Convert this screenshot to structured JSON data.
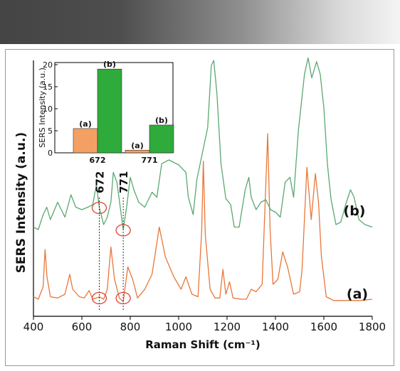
{
  "chart_data": [
    {
      "type": "line",
      "xlabel": "Raman Shift (cm⁻¹)",
      "ylabel": "SERS Intensity (a.u.)",
      "xlim": [
        400,
        1800
      ],
      "xticks": [
        "400",
        "600",
        "800",
        "1000",
        "1200",
        "1400",
        "1600",
        "1800"
      ],
      "y_ticks_shown": false,
      "y_scale": "arbitrary, offset traces",
      "colors": {
        "a": "#e8773a",
        "b": "#5aa870"
      },
      "annotations": [
        {
          "text": "672",
          "x": 672
        },
        {
          "text": "771",
          "x": 771
        }
      ],
      "series": [
        {
          "name": "(a)",
          "label": "(a)",
          "points": [
            [
              400,
              0.06
            ],
            [
              420,
              0.04
            ],
            [
              440,
              0.14
            ],
            [
              448,
              0.44
            ],
            [
              456,
              0.22
            ],
            [
              470,
              0.06
            ],
            [
              500,
              0.05
            ],
            [
              530,
              0.08
            ],
            [
              550,
              0.24
            ],
            [
              562,
              0.12
            ],
            [
              590,
              0.06
            ],
            [
              610,
              0.05
            ],
            [
              630,
              0.11
            ],
            [
              645,
              0.04
            ],
            [
              660,
              0.05
            ],
            [
              672,
              0.06
            ],
            [
              690,
              0.04
            ],
            [
              705,
              0.12
            ],
            [
              720,
              0.46
            ],
            [
              735,
              0.2
            ],
            [
              755,
              0.05
            ],
            [
              771,
              0.02
            ],
            [
              790,
              0.3
            ],
            [
              810,
              0.2
            ],
            [
              830,
              0.05
            ],
            [
              860,
              0.12
            ],
            [
              890,
              0.24
            ],
            [
              920,
              0.62
            ],
            [
              945,
              0.38
            ],
            [
              980,
              0.22
            ],
            [
              1010,
              0.12
            ],
            [
              1030,
              0.22
            ],
            [
              1055,
              0.08
            ],
            [
              1080,
              0.06
            ],
            [
              1095,
              0.58
            ],
            [
              1102,
              1.15
            ],
            [
              1110,
              0.56
            ],
            [
              1130,
              0.12
            ],
            [
              1150,
              0.05
            ],
            [
              1170,
              0.05
            ],
            [
              1183,
              0.28
            ],
            [
              1195,
              0.08
            ],
            [
              1210,
              0.18
            ],
            [
              1225,
              0.05
            ],
            [
              1260,
              0.04
            ],
            [
              1280,
              0.04
            ],
            [
              1300,
              0.12
            ],
            [
              1320,
              0.1
            ],
            [
              1345,
              0.16
            ],
            [
              1368,
              1.37
            ],
            [
              1378,
              0.6
            ],
            [
              1390,
              0.16
            ],
            [
              1410,
              0.2
            ],
            [
              1430,
              0.42
            ],
            [
              1450,
              0.3
            ],
            [
              1475,
              0.08
            ],
            [
              1500,
              0.1
            ],
            [
              1510,
              0.28
            ],
            [
              1530,
              1.1
            ],
            [
              1548,
              0.68
            ],
            [
              1565,
              1.05
            ],
            [
              1578,
              0.82
            ],
            [
              1590,
              0.38
            ],
            [
              1610,
              0.06
            ],
            [
              1640,
              0.03
            ],
            [
              1700,
              0.03
            ],
            [
              1750,
              0.03
            ],
            [
              1800,
              0.04
            ]
          ]
        },
        {
          "name": "(b)",
          "label": "(b)",
          "points": [
            [
              400,
              0.42
            ],
            [
              420,
              0.4
            ],
            [
              440,
              0.52
            ],
            [
              455,
              0.58
            ],
            [
              470,
              0.48
            ],
            [
              500,
              0.62
            ],
            [
              530,
              0.5
            ],
            [
              555,
              0.68
            ],
            [
              575,
              0.58
            ],
            [
              600,
              0.56
            ],
            [
              625,
              0.58
            ],
            [
              645,
              0.6
            ],
            [
              660,
              0.76
            ],
            [
              672,
              0.58
            ],
            [
              690,
              0.44
            ],
            [
              705,
              0.5
            ],
            [
              720,
              0.62
            ],
            [
              730,
              0.86
            ],
            [
              745,
              0.78
            ],
            [
              760,
              0.56
            ],
            [
              771,
              0.4
            ],
            [
              785,
              0.58
            ],
            [
              800,
              0.82
            ],
            [
              815,
              0.72
            ],
            [
              835,
              0.62
            ],
            [
              860,
              0.58
            ],
            [
              890,
              0.7
            ],
            [
              910,
              0.66
            ],
            [
              930,
              0.93
            ],
            [
              960,
              0.96
            ],
            [
              1000,
              0.92
            ],
            [
              1030,
              0.86
            ],
            [
              1040,
              0.66
            ],
            [
              1060,
              0.52
            ],
            [
              1075,
              0.8
            ],
            [
              1090,
              0.94
            ],
            [
              1105,
              1.08
            ],
            [
              1120,
              1.22
            ],
            [
              1135,
              1.72
            ],
            [
              1145,
              1.76
            ],
            [
              1158,
              1.5
            ],
            [
              1175,
              0.93
            ],
            [
              1195,
              0.65
            ],
            [
              1215,
              0.6
            ],
            [
              1230,
              0.42
            ],
            [
              1250,
              0.42
            ],
            [
              1275,
              0.72
            ],
            [
              1290,
              0.82
            ],
            [
              1300,
              0.66
            ],
            [
              1320,
              0.56
            ],
            [
              1340,
              0.62
            ],
            [
              1360,
              0.64
            ],
            [
              1380,
              0.56
            ],
            [
              1400,
              0.54
            ],
            [
              1420,
              0.5
            ],
            [
              1440,
              0.78
            ],
            [
              1460,
              0.82
            ],
            [
              1475,
              0.66
            ],
            [
              1495,
              1.2
            ],
            [
              1505,
              1.38
            ],
            [
              1520,
              1.65
            ],
            [
              1535,
              1.78
            ],
            [
              1550,
              1.62
            ],
            [
              1570,
              1.75
            ],
            [
              1585,
              1.65
            ],
            [
              1600,
              1.38
            ],
            [
              1615,
              0.92
            ],
            [
              1630,
              0.64
            ],
            [
              1650,
              0.44
            ],
            [
              1670,
              0.46
            ],
            [
              1690,
              0.6
            ],
            [
              1710,
              0.72
            ],
            [
              1725,
              0.66
            ],
            [
              1745,
              0.48
            ],
            [
              1770,
              0.44
            ],
            [
              1800,
              0.42
            ]
          ]
        }
      ]
    },
    {
      "type": "bar",
      "ylabel": "SERS Intensity (a.u.)",
      "ylim": [
        0,
        20
      ],
      "yticks": [
        "0",
        "5",
        "10",
        "15",
        "20"
      ],
      "categories": [
        "672",
        "771"
      ],
      "series": [
        {
          "name": "(a)",
          "color": "#f4a064",
          "values": [
            5.5,
            0.6
          ]
        },
        {
          "name": "(b)",
          "color": "#2eab3a",
          "values": [
            19.0,
            6.3
          ]
        }
      ]
    }
  ]
}
